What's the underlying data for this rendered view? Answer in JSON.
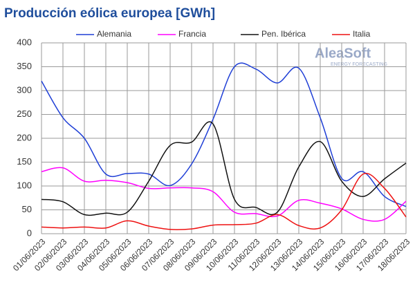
{
  "chart_data": {
    "type": "line",
    "title": "Producción eólica europea [GWh]",
    "logo": {
      "name": "AleaSoft",
      "tagline": "ENERGY FORECASTING"
    },
    "categories": [
      "01/06/2023",
      "02/06/2023",
      "03/06/2023",
      "04/06/2023",
      "05/06/2023",
      "06/06/2023",
      "07/06/2023",
      "08/06/2023",
      "09/06/2023",
      "10/06/2023",
      "11/06/2023",
      "12/06/2023",
      "13/06/2023",
      "14/06/2023",
      "15/06/2023",
      "16/06/2023",
      "17/06/2023",
      "18/06/2023"
    ],
    "series": [
      {
        "name": "Alemania",
        "color": "#1f3fd6",
        "values": [
          320,
          243,
          200,
          125,
          126,
          125,
          101,
          146,
          240,
          350,
          345,
          316,
          347,
          243,
          116,
          130,
          78,
          57
        ]
      },
      {
        "name": "Francia",
        "color": "#ff00ff",
        "values": [
          130,
          138,
          110,
          112,
          107,
          95,
          96,
          96,
          88,
          45,
          42,
          37,
          70,
          64,
          52,
          30,
          30,
          68
        ]
      },
      {
        "name": "Pen. Ibérica",
        "color": "#111111",
        "values": [
          72,
          67,
          40,
          43,
          45,
          110,
          185,
          192,
          230,
          72,
          55,
          45,
          140,
          193,
          110,
          78,
          115,
          148
        ]
      },
      {
        "name": "Italia",
        "color": "#ee1111",
        "values": [
          14,
          12,
          14,
          12,
          27,
          16,
          9,
          10,
          18,
          19,
          22,
          40,
          17,
          12,
          50,
          125,
          95,
          35
        ]
      }
    ],
    "ylim": [
      0,
      400
    ],
    "yticks": [
      0,
      50,
      100,
      150,
      200,
      250,
      300,
      350,
      400
    ],
    "grid": true,
    "legend": "top"
  }
}
